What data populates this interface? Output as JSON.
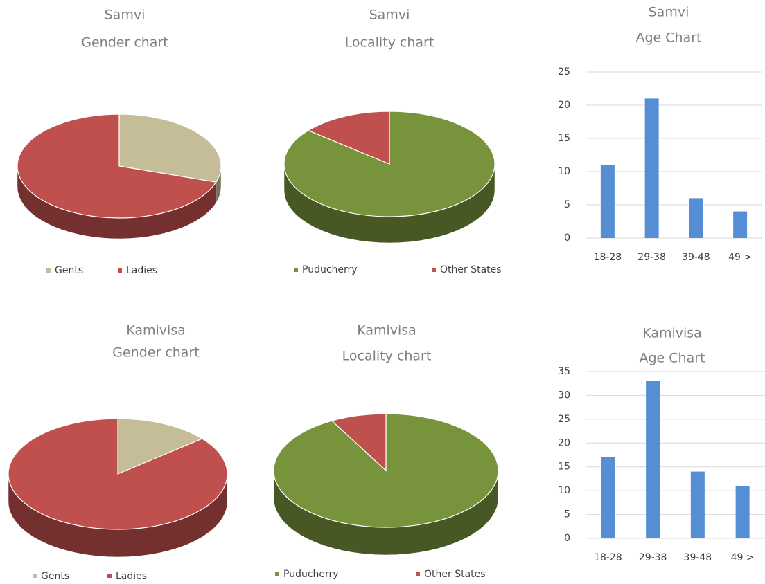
{
  "chart_data": [
    {
      "type": "pie",
      "title": [
        "Samvi",
        "Gender chart"
      ],
      "categories": [
        "Gents",
        "Ladies"
      ],
      "values": [
        30,
        70
      ],
      "colors": [
        "#c4bd97",
        "#c0504d"
      ]
    },
    {
      "type": "pie",
      "title": [
        "Samvi",
        "Locality chart"
      ],
      "categories": [
        "Puducherry",
        "Other States"
      ],
      "values": [
        86,
        14
      ],
      "colors": [
        "#77933c",
        "#c0504d"
      ]
    },
    {
      "type": "bar",
      "title": [
        "Samvi",
        "Age Chart"
      ],
      "categories": [
        "18-28",
        "29-38",
        "39-48",
        "49 >"
      ],
      "values": [
        11,
        21,
        6,
        4
      ],
      "color": "#558ed5",
      "ylim": [
        0,
        25
      ],
      "yticks": [
        0,
        5,
        10,
        15,
        20,
        25
      ],
      "grid": true
    },
    {
      "type": "pie",
      "title": [
        "Kamivisa",
        "Gender chart"
      ],
      "categories": [
        "Gents",
        "Ladies"
      ],
      "values": [
        14,
        86
      ],
      "colors": [
        "#c4bd97",
        "#c0504d"
      ]
    },
    {
      "type": "pie",
      "title": [
        "Kamivisa",
        "Locality chart"
      ],
      "categories": [
        "Puducherry",
        "Other States"
      ],
      "values": [
        92,
        8
      ],
      "colors": [
        "#77933c",
        "#c0504d"
      ]
    },
    {
      "type": "bar",
      "title": [
        "Kamivisa",
        "Age Chart"
      ],
      "categories": [
        "18-28",
        "29-38",
        "39-48",
        "49 >"
      ],
      "values": [
        17,
        33,
        14,
        11
      ],
      "color": "#558ed5",
      "ylim": [
        0,
        35
      ],
      "yticks": [
        0,
        5,
        10,
        15,
        20,
        25,
        30,
        35
      ],
      "grid": true
    }
  ]
}
